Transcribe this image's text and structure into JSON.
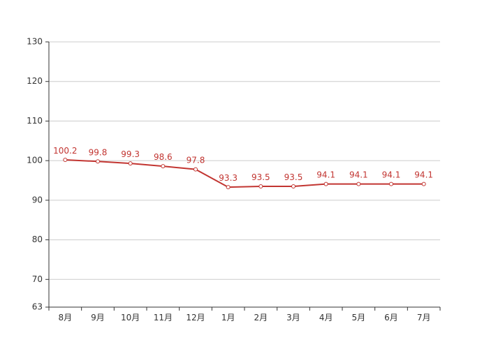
{
  "chart_data": {
    "type": "line",
    "title": "",
    "xlabel": "",
    "ylabel": "",
    "categories": [
      "8月",
      "9月",
      "10月",
      "11月",
      "12月",
      "1月",
      "2月",
      "3月",
      "4月",
      "5月",
      "6月",
      "7月"
    ],
    "series": [
      {
        "values": [
          100.2,
          99.8,
          99.3,
          98.6,
          97.8,
          93.3,
          93.5,
          93.5,
          94.1,
          94.1,
          94.1,
          94.1
        ]
      }
    ],
    "ylim": [
      63,
      130
    ],
    "yticks": [
      63,
      70,
      80,
      90,
      100,
      110,
      120,
      130
    ],
    "grid": true,
    "legend": "none",
    "data_labels": true
  },
  "colors": {
    "series": "#c23531",
    "grid": "#cccccc",
    "axis": "#333333"
  }
}
